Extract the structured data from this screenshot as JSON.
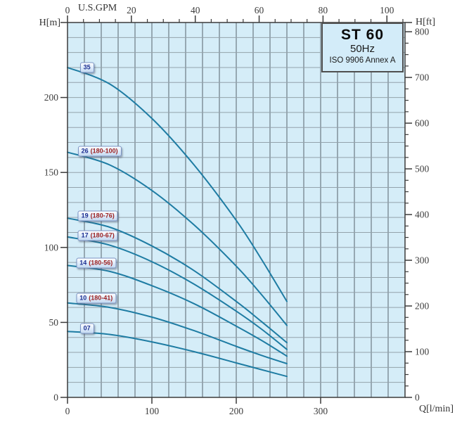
{
  "title_box": {
    "model": "ST 60",
    "frequency": "50Hz",
    "standard": "ISO 9906 Annex A"
  },
  "colors": {
    "plot_bg": "#d5edf8",
    "grid_vertical": "#57626b",
    "grid_horizontal": "#93a2ab",
    "frame": "#3b3b3b",
    "curve": "#1e7ca3",
    "tick_text": "#3c3c3c",
    "label_number": "#1b2d91",
    "label_detail": "#9c1f1f"
  },
  "chart_data": {
    "type": "line",
    "title": "ST 60 50Hz pump performance curves (head vs flow)",
    "x_bottom": {
      "label": "Q[l/min]",
      "range": [
        0,
        400
      ],
      "major_ticks": [
        0,
        100,
        200,
        300
      ],
      "grid_step": 20
    },
    "x_top": {
      "label": "U.S.GPM",
      "major_ticks": [
        0,
        20,
        40,
        60,
        80,
        100
      ],
      "minor_step": 5,
      "lmin_per_gpm": 3.7854
    },
    "y_left": {
      "label": "H[m]",
      "range": [
        0,
        250
      ],
      "major_ticks": [
        0,
        50,
        100,
        150,
        200
      ],
      "grid_step": 10
    },
    "y_right": {
      "label": "H[ft]",
      "major_ticks": [
        0,
        100,
        200,
        300,
        400,
        500,
        600,
        700,
        800
      ],
      "minor_step": 25,
      "m_per_ft": 0.3048
    },
    "grid": true,
    "x": [
      0,
      50,
      100,
      150,
      200,
      230,
      260
    ],
    "series": [
      {
        "stages": "35",
        "detail": "",
        "values": [
          220,
          209,
          186,
          155,
          118,
          92,
          64
        ],
        "label_q": 23,
        "label_h": 220
      },
      {
        "stages": "26",
        "detail": "(180-100)",
        "values": [
          163.5,
          155,
          138,
          115,
          87.5,
          68.5,
          48
        ],
        "label_q": 38,
        "label_h": 164
      },
      {
        "stages": "19",
        "detail": "(180-76)",
        "values": [
          119.5,
          113.5,
          101,
          84.5,
          64,
          50.5,
          36.5
        ],
        "label_q": 36,
        "label_h": 121
      },
      {
        "stages": "17",
        "detail": "(180-67)",
        "values": [
          107,
          101.5,
          90.5,
          75.5,
          57.5,
          45.5,
          32
        ],
        "label_q": 36,
        "label_h": 108
      },
      {
        "stages": "14",
        "detail": "(180-56)",
        "values": [
          88,
          84,
          74.5,
          62.5,
          47.5,
          38,
          27.5
        ],
        "label_q": 34,
        "label_h": 89.5
      },
      {
        "stages": "10",
        "detail": "(180-41)",
        "values": [
          63,
          60,
          53.5,
          44.5,
          34,
          28,
          22.5
        ],
        "label_q": 34,
        "label_h": 66
      },
      {
        "stages": "07",
        "detail": "",
        "values": [
          44,
          42,
          37,
          30.5,
          23,
          18.5,
          14
        ],
        "label_q": 23,
        "label_h": 46
      }
    ]
  }
}
